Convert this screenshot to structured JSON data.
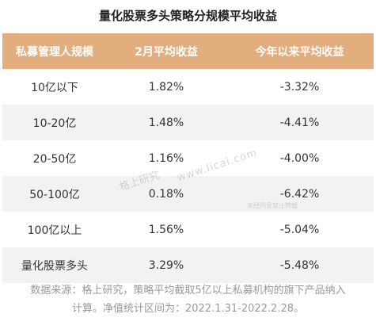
{
  "title": "量化股票多头策略分规模平均收益",
  "header": {
    "col1": "私募管理人规模",
    "col2": "2月平均收益",
    "col3": "今年以来平均收益"
  },
  "rows": [
    {
      "scale": "10亿以下",
      "feb": "1.82%",
      "ytd": "-3.32%"
    },
    {
      "scale": "10-20亿",
      "feb": "1.48%",
      "ytd": "-4.41%"
    },
    {
      "scale": "20-50亿",
      "feb": "1.16%",
      "ytd": "-4.00%"
    },
    {
      "scale": "50-100亿",
      "feb": "0.18%",
      "ytd": "-6.42%"
    },
    {
      "scale": "100亿以上",
      "feb": "1.56%",
      "ytd": "-5.04%"
    },
    {
      "scale": "量化股票多头",
      "feb": "3.29%",
      "ytd": "-5.48%"
    }
  ],
  "note": {
    "line1": "数据来源：格上研究，策略平均截取5亿以上私募机构的旗下产品纳入",
    "line2": "计算。净值统计区间为：2022.1.31-2022.2.28。"
  },
  "watermark": {
    "brand": "格上研究",
    "site": "www.licai.com",
    "small": "未经同意禁止转载"
  },
  "colors": {
    "header_bg": "#e3ae7e",
    "alt_row_bg": "#f2f2f2"
  }
}
